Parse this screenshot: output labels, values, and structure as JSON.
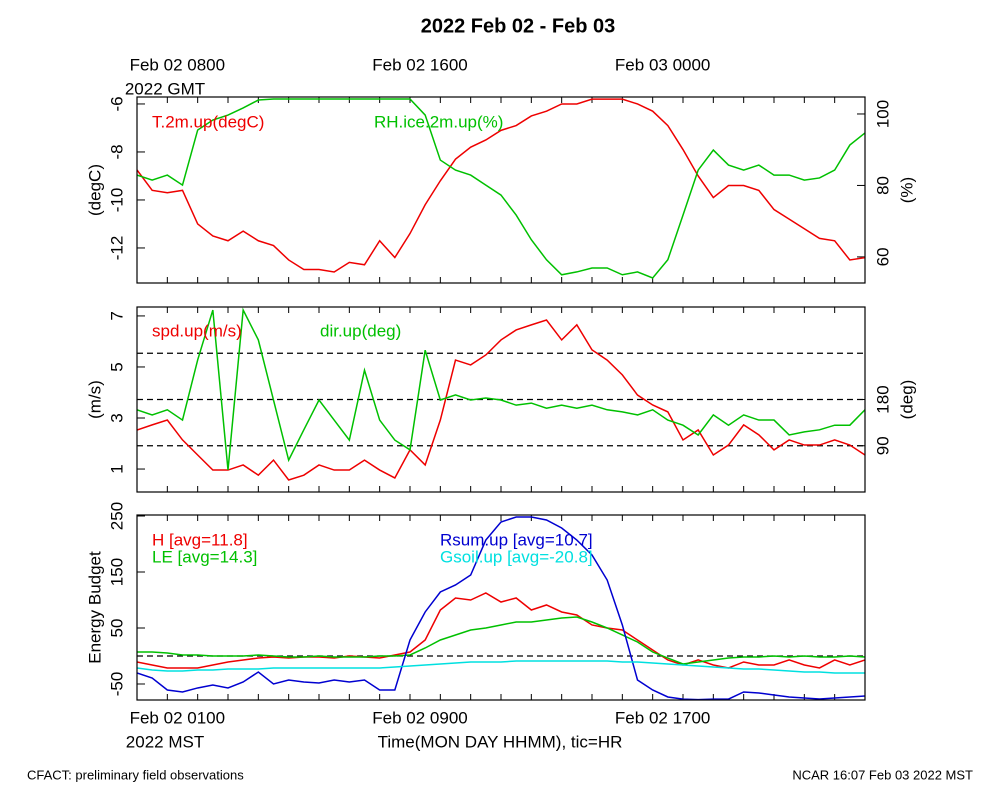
{
  "title": "2022 Feb 02 - Feb 03",
  "footer_left": "CFACT: preliminary field observations",
  "footer_right": "NCAR 16:07 Feb 03 2022 MST",
  "chart_data": [
    {
      "type": "line",
      "x": [
        0,
        0.5,
        1,
        1.5,
        2,
        2.5,
        3,
        3.5,
        4,
        4.5,
        5,
        5.5,
        6,
        6.5,
        7,
        7.5,
        8,
        8.5,
        9,
        9.5,
        10,
        10.5,
        11,
        11.5,
        12,
        12.5,
        13,
        13.5,
        14,
        14.5,
        15,
        15.5,
        16,
        16.5,
        17,
        17.5,
        18,
        18.5,
        19,
        19.5,
        20,
        20.5,
        21,
        21.5,
        22,
        22.5,
        23,
        23.5,
        24
      ],
      "xlim": [
        0,
        24
      ],
      "minor_xticks": [
        0,
        1,
        2,
        3,
        4,
        5,
        6,
        7,
        8,
        9,
        10,
        11,
        12,
        13,
        14,
        15,
        16,
        17,
        18,
        19,
        20,
        21,
        22,
        23,
        24
      ],
      "top_xticks": [
        {
          "value": 1,
          "label": "Feb 02 0800"
        },
        {
          "value": 9,
          "label": "Feb 02 1600"
        },
        {
          "value": 17,
          "label": "Feb 03 0000"
        }
      ],
      "top_xlabel": "2022 GMT",
      "ylabel": "(degC)",
      "ylim": [
        -13.46,
        -5.71
      ],
      "yticks": [
        -12,
        -10,
        -8,
        -6
      ],
      "y2label": "(%)",
      "y2lim": [
        52.7,
        104.75
      ],
      "y2ticks": [
        60,
        80,
        100
      ],
      "series": [
        {
          "name": "T.2m.up(degC)",
          "color": "#ee0000",
          "values": [
            -8.75,
            -9.6,
            -9.7,
            -9.6,
            -11.0,
            -11.5,
            -11.7,
            -11.3,
            -11.7,
            -11.9,
            -12.5,
            -12.9,
            -12.9,
            -13.0,
            -12.6,
            -12.7,
            -11.7,
            -12.4,
            -11.4,
            -10.2,
            -9.2,
            -8.3,
            -7.8,
            -7.5,
            -7.1,
            -6.9,
            -6.5,
            -6.3,
            -6.0,
            -6.0,
            -5.8,
            -5.8,
            -5.8,
            -6.0,
            -6.3,
            -6.9,
            -7.9,
            -9.0,
            -9.9,
            -9.4,
            -9.4,
            -9.6,
            -10.4,
            -10.8,
            -11.2,
            -11.6,
            -11.7,
            -12.5,
            -12.4
          ]
        },
        {
          "name": "RH.ice.2m.up(%)",
          "color": "#00c000",
          "axis": "y2",
          "values": [
            82.9,
            81.5,
            82.9,
            80.1,
            95.5,
            98.3,
            99.7,
            101.7,
            103.9,
            104.2,
            104.2,
            104.2,
            104.2,
            104.2,
            104.2,
            104.2,
            104.2,
            104.2,
            104.2,
            99.7,
            87.1,
            84.3,
            82.9,
            80.1,
            77.3,
            71.7,
            64.8,
            59.2,
            55.0,
            55.8,
            56.9,
            56.9,
            55.0,
            55.8,
            54.1,
            59.2,
            71.7,
            84.3,
            89.9,
            85.7,
            84.3,
            85.7,
            82.9,
            82.9,
            81.5,
            82.1,
            84.3,
            91.3,
            94.7
          ]
        }
      ]
    },
    {
      "type": "line",
      "x": [
        0,
        0.5,
        1,
        1.5,
        2,
        2.5,
        3,
        3.5,
        4,
        4.5,
        5,
        5.5,
        6,
        6.5,
        7,
        7.5,
        8,
        8.5,
        9,
        9.5,
        10,
        10.5,
        11,
        11.5,
        12,
        12.5,
        13,
        13.5,
        14,
        14.5,
        15,
        15.5,
        16,
        16.5,
        17,
        17.5,
        18,
        18.5,
        19,
        19.5,
        20,
        20.5,
        21,
        21.5,
        22,
        22.5,
        23,
        23.5,
        24
      ],
      "xlim": [
        0,
        24
      ],
      "minor_xticks": [
        0,
        1,
        2,
        3,
        4,
        5,
        6,
        7,
        8,
        9,
        10,
        11,
        12,
        13,
        14,
        15,
        16,
        17,
        18,
        19,
        20,
        21,
        22,
        23,
        24
      ],
      "ylabel": "(m/s)",
      "ylim": [
        0.1,
        7.35
      ],
      "yticks": [
        1,
        3,
        5,
        7
      ],
      "y2label": "(deg)",
      "y2lim": [
        0,
        360
      ],
      "y2ticks": [
        90,
        180
      ],
      "hlines": [
        90,
        180,
        270
      ],
      "hlines_axis": "y2",
      "series": [
        {
          "name": "spd.up(m/s)",
          "color": "#ee0000",
          "values": [
            2.53,
            2.73,
            2.92,
            2.14,
            1.55,
            0.96,
            0.96,
            1.16,
            0.76,
            1.35,
            0.57,
            0.76,
            1.16,
            0.96,
            0.96,
            1.35,
            0.96,
            0.65,
            1.75,
            1.16,
            2.92,
            5.27,
            5.08,
            5.47,
            6.06,
            6.45,
            6.65,
            6.84,
            6.06,
            6.65,
            5.67,
            5.27,
            4.69,
            3.9,
            3.51,
            3.24,
            2.14,
            2.53,
            1.55,
            1.94,
            2.73,
            2.34,
            1.75,
            2.14,
            1.94,
            1.94,
            2.14,
            1.94,
            1.55
          ]
        },
        {
          "name": "dir.up(deg)",
          "color": "#00c000",
          "axis": "y2",
          "values": [
            160,
            150,
            160,
            140,
            257,
            354,
            43,
            354,
            296,
            179,
            62,
            121,
            179,
            140,
            101,
            237,
            140,
            101,
            82,
            276,
            179,
            189,
            179,
            183,
            179,
            169,
            173,
            163,
            169,
            163,
            169,
            160,
            156,
            150,
            160,
            140,
            130,
            111,
            150,
            130,
            150,
            140,
            140,
            111,
            117,
            121,
            130,
            130,
            160
          ]
        }
      ]
    },
    {
      "type": "line",
      "x": [
        0,
        0.5,
        1,
        1.5,
        2,
        2.5,
        3,
        3.5,
        4,
        4.5,
        5,
        5.5,
        6,
        6.5,
        7,
        7.5,
        8,
        8.5,
        9,
        9.5,
        10,
        10.5,
        11,
        11.5,
        12,
        12.5,
        13,
        13.5,
        14,
        14.5,
        15,
        15.5,
        16,
        16.5,
        17,
        17.5,
        18,
        18.5,
        19,
        19.5,
        20,
        20.5,
        21,
        21.5,
        22,
        22.5,
        23,
        23.5,
        24
      ],
      "xlim": [
        0,
        24
      ],
      "minor_xticks": [
        0,
        1,
        2,
        3,
        4,
        5,
        6,
        7,
        8,
        9,
        10,
        11,
        12,
        13,
        14,
        15,
        16,
        17,
        18,
        19,
        20,
        21,
        22,
        23,
        24
      ],
      "xticks": [
        {
          "value": 1,
          "label": "Feb 02 0100"
        },
        {
          "value": 9,
          "label": "Feb 02 0900"
        },
        {
          "value": 17,
          "label": "Feb 02 1700"
        }
      ],
      "x_year_label": "2022 MST",
      "xlabel": "Time(MON DAY HHMM), tic=HR",
      "ylabel": "Energy Budget",
      "ylim": [
        -78.6,
        251.8
      ],
      "yticks": [
        -50,
        50,
        150,
        250
      ],
      "hlines": [
        0
      ],
      "series": [
        {
          "name": "H [avg=11.8]",
          "color": "#ee0000",
          "values": [
            -10.7,
            -16.1,
            -21.4,
            -21.4,
            -21.4,
            -16.1,
            -10.7,
            -7.1,
            -3.6,
            -1.8,
            -3.6,
            -1.8,
            -1.8,
            -3.6,
            0,
            -1.8,
            -3.6,
            1.8,
            7.1,
            28.6,
            82.1,
            103.6,
            100,
            112.5,
            96.4,
            103.6,
            82.1,
            91.1,
            78.6,
            73.2,
            55.4,
            50,
            46.4,
            28.6,
            10.7,
            -7.1,
            -16.1,
            -7.1,
            -16.1,
            -21.4,
            -10.7,
            -16.1,
            -16.1,
            -7.1,
            -16.1,
            -21.4,
            -7.1,
            -16.1,
            -7.1
          ]
        },
        {
          "name": "LE [avg=14.3]",
          "color": "#00c000",
          "values": [
            7.1,
            7.1,
            5.4,
            1.8,
            1.8,
            0,
            0,
            0,
            1.8,
            0,
            -1.8,
            -1.8,
            0,
            -1.8,
            -1.8,
            -1.8,
            0,
            0,
            1.8,
            14.3,
            28.6,
            37.5,
            46.4,
            50,
            55.4,
            60.7,
            60.7,
            64.3,
            67.9,
            69.6,
            60.7,
            50,
            37.5,
            25,
            7.1,
            -3.6,
            -14.3,
            -10.7,
            -7.1,
            -3.6,
            -1.8,
            -1.8,
            0,
            -1.8,
            0,
            -1.8,
            -1.8,
            0,
            -1.8
          ]
        },
        {
          "name": "Rsum.up [avg=10.7]",
          "color": "#0000d0",
          "values": [
            -30.4,
            -39.3,
            -60.7,
            -64.3,
            -57.1,
            -51.8,
            -57.1,
            -46.4,
            -28.6,
            -50,
            -42.9,
            -46.4,
            -48.2,
            -42.9,
            -46.4,
            -42.9,
            -60.7,
            -60.7,
            28.6,
            78.6,
            114.3,
            126.8,
            144.6,
            207.1,
            239.3,
            248.2,
            248.2,
            242.9,
            228.6,
            207.1,
            180.4,
            135.7,
            55.4,
            -42.9,
            -60.7,
            -73.2,
            -77,
            -78,
            -77,
            -77,
            -64.3,
            -66.1,
            -69.6,
            -73.2,
            -75,
            -76.8,
            -75,
            -73.2,
            -71.4
          ]
        },
        {
          "name": "Gsoil.up [avg=-20.8]",
          "color": "#00e0e0",
          "values": [
            -21.4,
            -25,
            -26.8,
            -26.8,
            -25,
            -25,
            -23.2,
            -23.2,
            -23.2,
            -21.4,
            -21.4,
            -21.4,
            -21.4,
            -21.4,
            -21.4,
            -21.4,
            -21.4,
            -19.6,
            -17.9,
            -16.1,
            -14.3,
            -12.5,
            -10.7,
            -10.7,
            -10.7,
            -8.9,
            -8.9,
            -8.9,
            -8.9,
            -8.9,
            -8.9,
            -8.9,
            -10.7,
            -10.7,
            -12.5,
            -14.3,
            -16.1,
            -17.9,
            -19.6,
            -21.4,
            -23.2,
            -23.2,
            -25,
            -26.8,
            -28.6,
            -28.6,
            -30.4,
            -30.4,
            -30.4
          ]
        }
      ]
    }
  ]
}
